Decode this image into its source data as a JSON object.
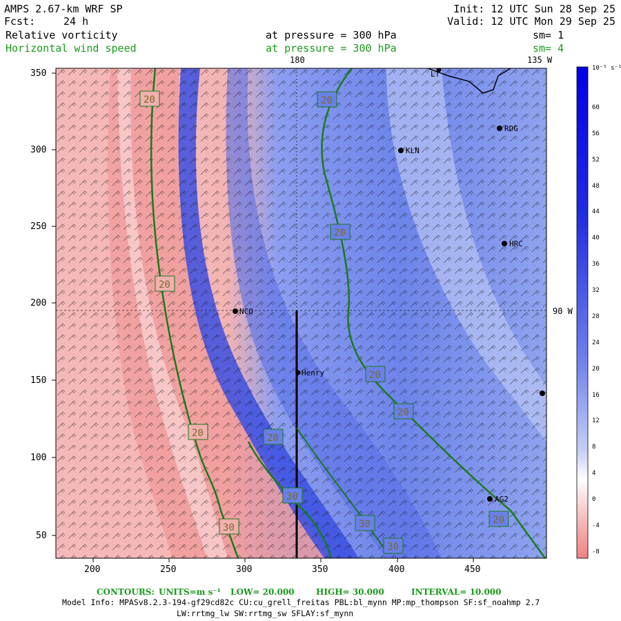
{
  "header": {
    "title": "AMPS 2.67-km WRF SP",
    "init": "Init: 12 UTC Sun 28 Sep 25",
    "fcst_label": "Fcst:",
    "fcst_value": "24 h",
    "valid": "Valid: 12 UTC Mon 29 Sep 25",
    "field1_name": "Relative vorticity",
    "field1_level": "at pressure =  300 hPa",
    "field1_sm": "sm= 1",
    "field2_name": "Horizontal wind speed",
    "field2_level": "at pressure =  300 hPa",
    "field2_sm": "sm= 4"
  },
  "map": {
    "meridian_label_180": "180",
    "meridian_label_135w": "135 W",
    "parallel_label_90w": "90 W",
    "x_ticks": [
      "200",
      "250",
      "300",
      "350",
      "400",
      "450"
    ],
    "y_ticks": [
      "50",
      "100",
      "150",
      "200",
      "250",
      "300",
      "350"
    ],
    "stations": [
      {
        "name": "NCO"
      },
      {
        "name": "Henry"
      },
      {
        "name": "KLN"
      },
      {
        "name": "RDG"
      },
      {
        "name": "HRC"
      },
      {
        "name": "AG2"
      },
      {
        "name": "LT"
      }
    ],
    "contour_labels": [
      "20",
      "20",
      "20",
      "30",
      "20",
      "20",
      "20",
      "20",
      "30",
      "30",
      "20",
      "30",
      "20"
    ]
  },
  "colorbar": {
    "unit": "10⁻⁵ s⁻¹",
    "ticks": [
      "60",
      "56",
      "52",
      "48",
      "44",
      "40",
      "36",
      "32",
      "28",
      "24",
      "20",
      "16",
      "12",
      "8",
      "4",
      "0",
      "-4",
      "-8"
    ],
    "colors": {
      "positive_max": "#0000e6",
      "negative_max": "#f08080",
      "contour": "#1a7a1a"
    }
  },
  "footer": {
    "contours_label": "CONTOURS:",
    "units_label": "UNITS=m s⁻¹",
    "low_label": "LOW=  20.000",
    "high_label": "HIGH=  30.000",
    "interval_label": "INTERVAL=  10.000",
    "model_info_line1": "Model Info: MPASv8.2.3-194-gf29cd82c CU:cu_grell_freitas PBL:bl_mynn MP:mp_thompson SF:sf_noahmp 2.7",
    "model_info_line2": "LW:rrtmg_lw SW:rrtmg_sw SFLAY:sf_mynn"
  }
}
